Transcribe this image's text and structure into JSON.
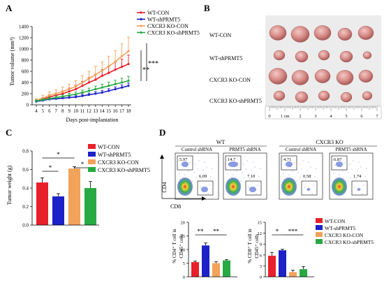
{
  "panels": {
    "A": {
      "letter": "A"
    },
    "B": {
      "letter": "B"
    },
    "C": {
      "letter": "C"
    },
    "D": {
      "letter": "D"
    }
  },
  "colors": {
    "wt_con": "#e8202a",
    "wt_sh": "#1c21c8",
    "ko_con": "#f3a25a",
    "ko_sh": "#27a943"
  },
  "legend": [
    "WT-CON",
    "WT-shPRMT5",
    "CXCR3 KO-CON",
    "CXCR3 KO-shPRMT5"
  ],
  "chart_data": [
    {
      "type": "line",
      "panel": "A",
      "title": "",
      "xlabel": "Days  post-implantation",
      "ylabel": "Tumor volume (mm³)",
      "x": [
        4,
        5,
        6,
        7,
        8,
        9,
        10,
        11,
        12,
        13,
        14,
        15,
        16,
        17,
        18
      ],
      "ylim": [
        0,
        1400
      ],
      "yticks": [
        "0",
        "200",
        "400",
        "600",
        "800",
        "1000",
        "1200",
        "1400"
      ],
      "series": [
        {
          "name": "WT-CON",
          "values": [
            70,
            100,
            140,
            170,
            200,
            240,
            280,
            340,
            400,
            450,
            520,
            570,
            630,
            680,
            730
          ],
          "err": [
            20,
            30,
            40,
            40,
            50,
            60,
            70,
            80,
            90,
            100,
            110,
            120,
            130,
            140,
            160
          ]
        },
        {
          "name": "WT-shPRMT5",
          "values": [
            60,
            80,
            100,
            110,
            120,
            130,
            140,
            160,
            180,
            200,
            220,
            250,
            280,
            310,
            340
          ],
          "err": [
            10,
            15,
            20,
            20,
            20,
            25,
            25,
            30,
            30,
            35,
            35,
            40,
            40,
            45,
            50
          ]
        },
        {
          "name": "CXCR3 KO-CON",
          "values": [
            80,
            120,
            170,
            200,
            240,
            280,
            330,
            400,
            470,
            540,
            610,
            690,
            770,
            870,
            960
          ],
          "err": [
            30,
            50,
            60,
            70,
            80,
            90,
            100,
            120,
            130,
            150,
            160,
            180,
            200,
            220,
            250
          ]
        },
        {
          "name": "CXCR3 KO-shPRMT5",
          "values": [
            70,
            90,
            110,
            130,
            150,
            170,
            190,
            220,
            250,
            280,
            310,
            340,
            370,
            400,
            430
          ],
          "err": [
            15,
            20,
            25,
            30,
            30,
            35,
            40,
            45,
            50,
            55,
            60,
            65,
            70,
            75,
            80
          ]
        }
      ],
      "annotations": [
        "**",
        "***"
      ]
    },
    {
      "type": "bar",
      "panel": "C",
      "title": "",
      "xlabel": "",
      "ylabel": "Tumor weight (g)",
      "categories": [
        "WT-CON",
        "WT-shPRMT5",
        "CXCR3 KO-CON",
        "CXCR3 KO-shPRMT5"
      ],
      "values": [
        0.46,
        0.31,
        0.61,
        0.4
      ],
      "err": [
        0.05,
        0.03,
        0.02,
        0.07
      ],
      "ylim": [
        0,
        0.8
      ],
      "yticks": [
        "0.0",
        "0.2",
        "0.4",
        "0.6",
        "0.8"
      ],
      "annotations": [
        "*",
        "*",
        "*"
      ]
    },
    {
      "type": "bar",
      "panel": "D-left",
      "title": "",
      "xlabel": "",
      "ylabel": "% CD4⁺ T cell in CD45⁺ cells",
      "categories": [
        "WT-CON",
        "WT-shPRMT5",
        "CXCR3 KO-CON",
        "CXCR3 KO-shPRMT5"
      ],
      "values": [
        5.4,
        11.5,
        5.0,
        6.0
      ],
      "err": [
        0.4,
        0.9,
        0.5,
        0.3
      ],
      "ylim": [
        0,
        20
      ],
      "yticks": [
        "0",
        "5",
        "10",
        "15",
        "20"
      ],
      "annotations": [
        "**",
        "**"
      ]
    },
    {
      "type": "bar",
      "panel": "D-right",
      "title": "",
      "xlabel": "",
      "ylabel": "% CD8⁺ T cell in CD45⁺ cells",
      "categories": [
        "WT-CON",
        "WT-shPRMT5",
        "CXCR3 KO-CON",
        "CXCR3 KO-shPRMT5"
      ],
      "values": [
        5.8,
        7.3,
        1.3,
        2.1
      ],
      "err": [
        0.9,
        0.3,
        0.5,
        0.7
      ],
      "ylim": [
        0,
        15
      ],
      "yticks": [
        "0",
        "3",
        "6",
        "9",
        "12",
        "15"
      ],
      "annotations": [
        "*",
        "***"
      ]
    }
  ],
  "photo": {
    "rows": [
      "WT-CON",
      "WT-shPRMT5",
      "CXCR3 KO-CON",
      "CXCR3 KO-shPRMT5"
    ],
    "ruler": [
      "0",
      "1 cm",
      "2",
      "3",
      "4",
      "5",
      "6",
      "7"
    ]
  },
  "flow": {
    "groups": [
      "WT",
      "CXCR3 KO"
    ],
    "conditions": [
      "Control shRNA",
      "PRMT5 shRNA",
      "Control shRNA",
      "PRMT5 shRNA"
    ],
    "cd4_pct": [
      "5.97",
      "14.7",
      "4.71",
      "6.87"
    ],
    "cd8_pct": [
      "6.09",
      "7.10",
      "0.58",
      "1.74"
    ],
    "y_axis": "CD4",
    "x_axis": "CD8"
  }
}
